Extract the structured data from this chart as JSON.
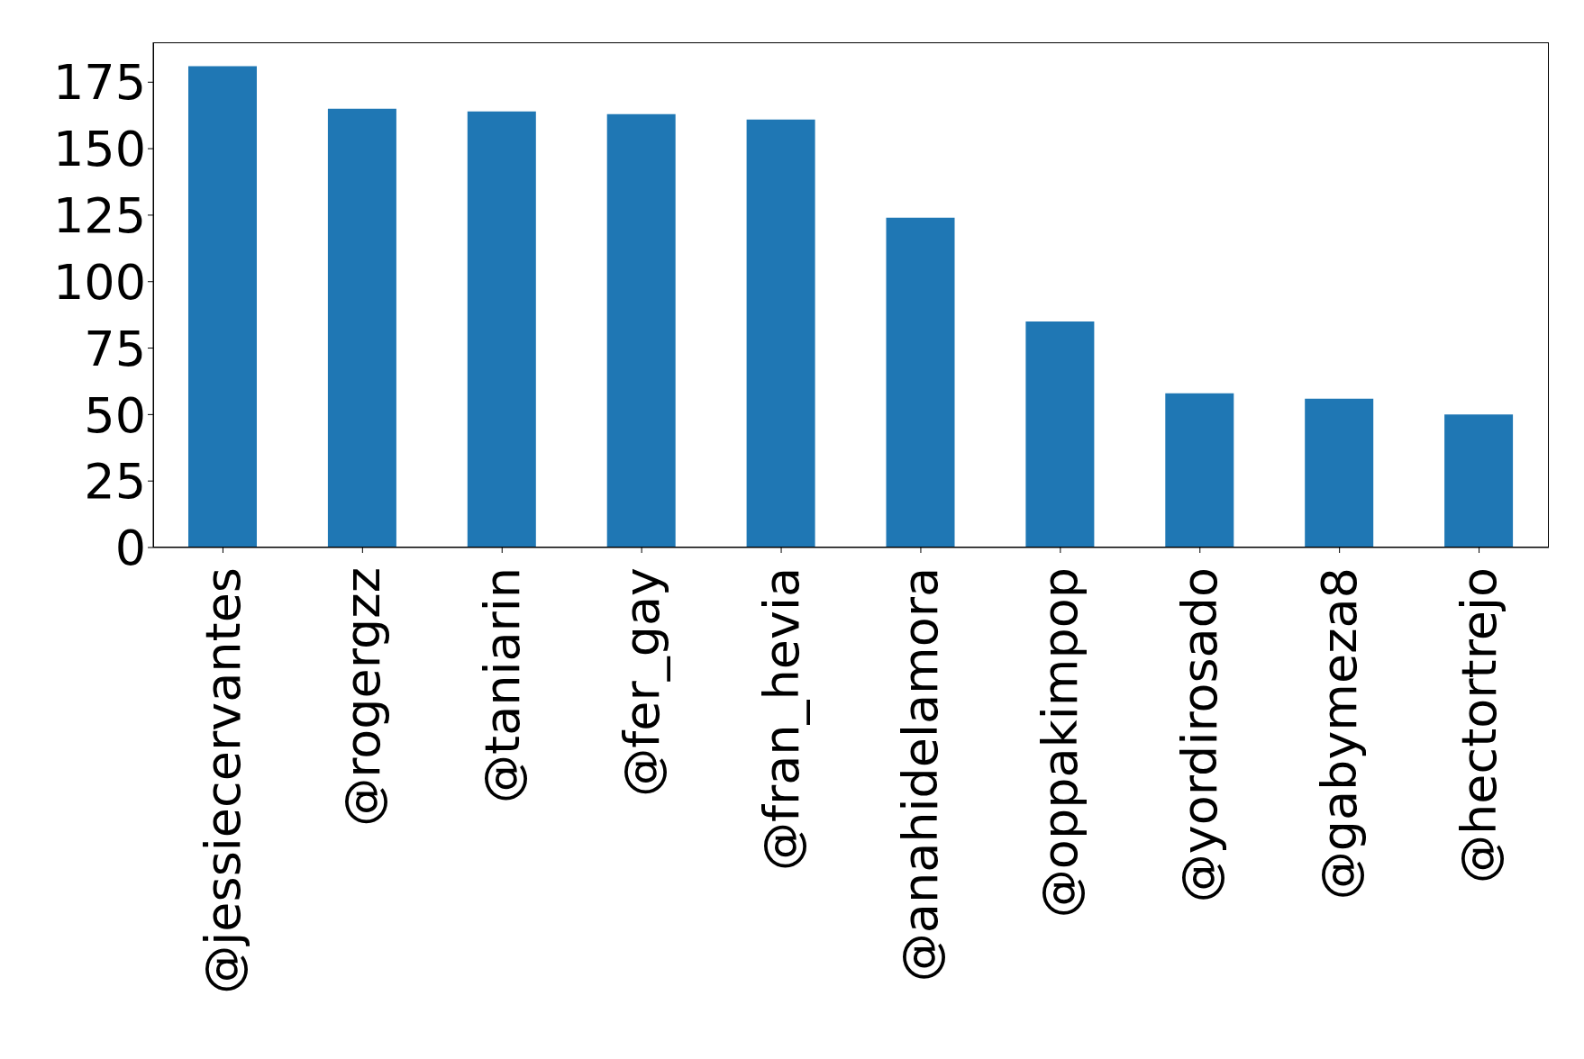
{
  "chart_data": {
    "type": "bar",
    "categories": [
      "@jessiecervantes",
      "@rogergzz",
      "@taniarin",
      "@fer_gay",
      "@fran_hevia",
      "@anahidelamora",
      "@oppakimpop",
      "@yordirosado",
      "@gabymeza8",
      "@hectortrejo"
    ],
    "values": [
      181,
      165,
      164,
      163,
      161,
      124,
      85,
      58,
      56,
      50
    ],
    "color": "#1f77b4",
    "ylim": [
      0,
      190
    ],
    "yticks": [
      0,
      25,
      50,
      75,
      100,
      125,
      150,
      175
    ],
    "grid": false,
    "legend": false
  }
}
